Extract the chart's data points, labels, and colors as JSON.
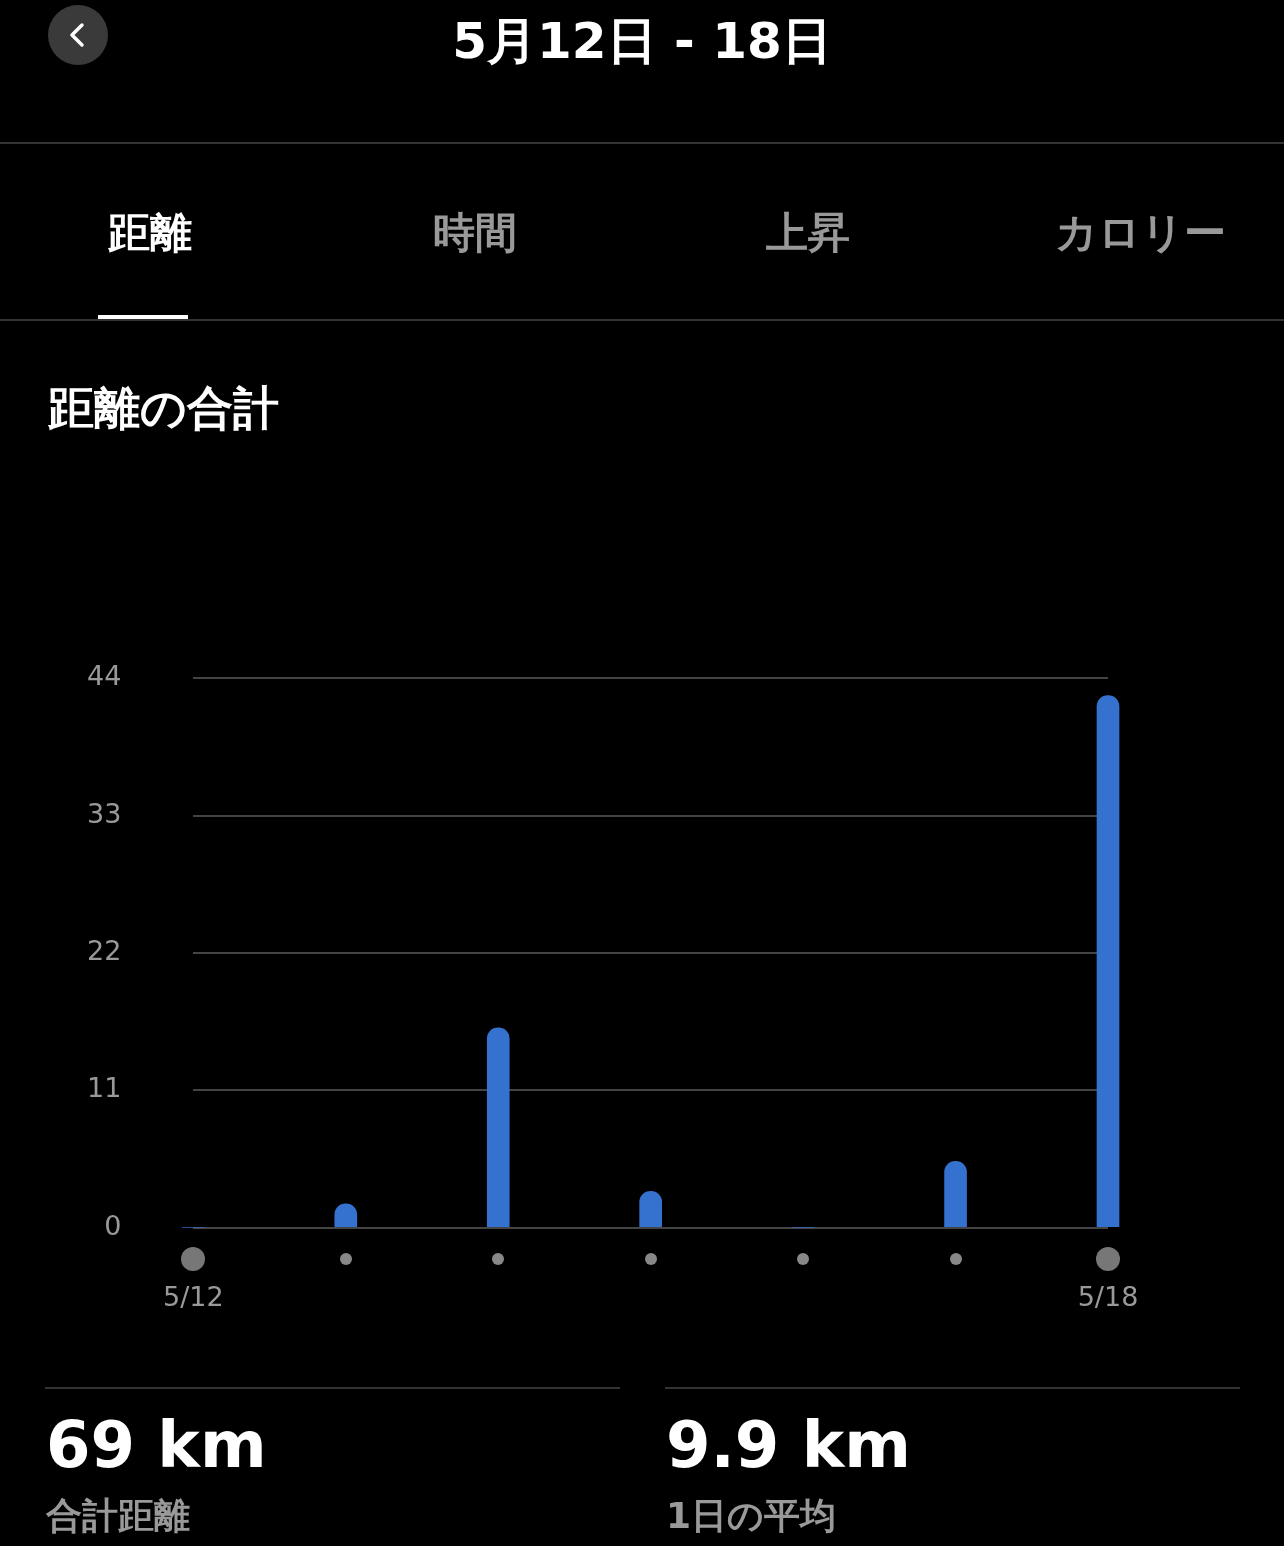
{
  "chart_data": {
    "type": "bar",
    "title": "5月12日 - 18日",
    "subtitle": "距離の合計",
    "categories": [
      "5/12",
      null,
      null,
      null,
      null,
      null,
      "5/18"
    ],
    "values": [
      0,
      1.9,
      16.0,
      2.9,
      0,
      5.3,
      42.6
    ],
    "color": "#3572d0",
    "ylim": [
      0,
      44
    ],
    "yticks": [
      0,
      11,
      22,
      33,
      44
    ],
    "grid": "y",
    "annotations": [
      "距離",
      "時間",
      "上昇",
      "カロリー",
      "69 km",
      "合計距離",
      "9.9 km",
      "1日の平均"
    ]
  }
}
